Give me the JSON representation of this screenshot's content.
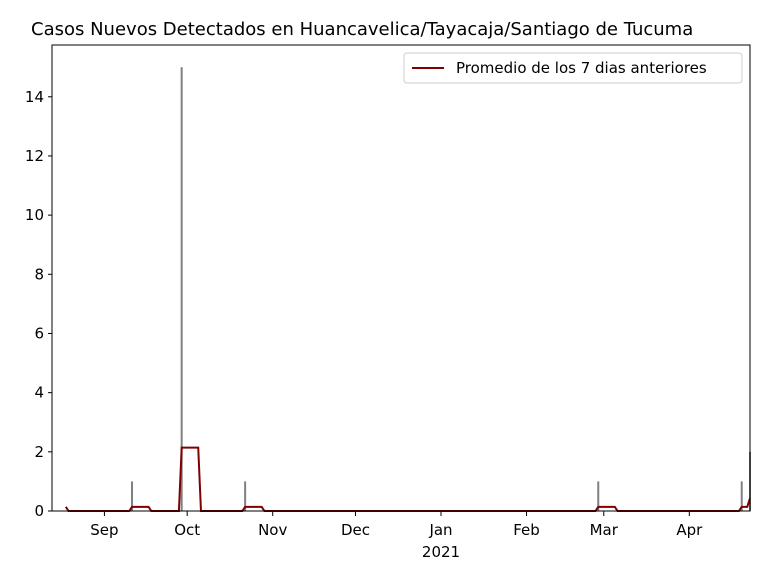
{
  "chart_data": {
    "type": "bar",
    "title": "Casos Nuevos Detectados en Huancavelica/Tayacaja/Santiago de Tucuma",
    "xlim": [
      0,
      253
    ],
    "xticks": [
      {
        "value": 19,
        "label": "Sep"
      },
      {
        "value": 49,
        "label": "Oct"
      },
      {
        "value": 80,
        "label": "Nov"
      },
      {
        "value": 110,
        "label": "Dec"
      },
      {
        "value": 141,
        "label": "Jan"
      },
      {
        "value": 172,
        "label": "Feb"
      },
      {
        "value": 200,
        "label": "Mar"
      },
      {
        "value": 231,
        "label": "Apr"
      }
    ],
    "annotations": [
      {
        "text": "2021",
        "x": 141
      }
    ],
    "ylim": [
      0,
      15.75
    ],
    "yticks": [
      0,
      2,
      4,
      6,
      8,
      10,
      12,
      14
    ],
    "legend": "upper right",
    "series": [
      {
        "type": "bar",
        "color": "#808080",
        "x": [
          29,
          47,
          70,
          198,
          250,
          253
        ],
        "values": [
          1,
          15,
          1,
          1,
          1,
          2
        ]
      },
      {
        "type": "line",
        "name": "Promedio de los 7 dias anteriores",
        "color": "#800000",
        "x": [
          5,
          6,
          28,
          29,
          35,
          36,
          46,
          47,
          53,
          54,
          69,
          70,
          76,
          77,
          197,
          198,
          204,
          205,
          249,
          250,
          252,
          253
        ],
        "values": [
          0.14,
          0,
          0,
          0.14,
          0.14,
          0,
          0,
          2.14,
          2.14,
          0,
          0,
          0.14,
          0.14,
          0,
          0,
          0.14,
          0.14,
          0,
          0,
          0.14,
          0.14,
          0.43
        ]
      }
    ]
  }
}
